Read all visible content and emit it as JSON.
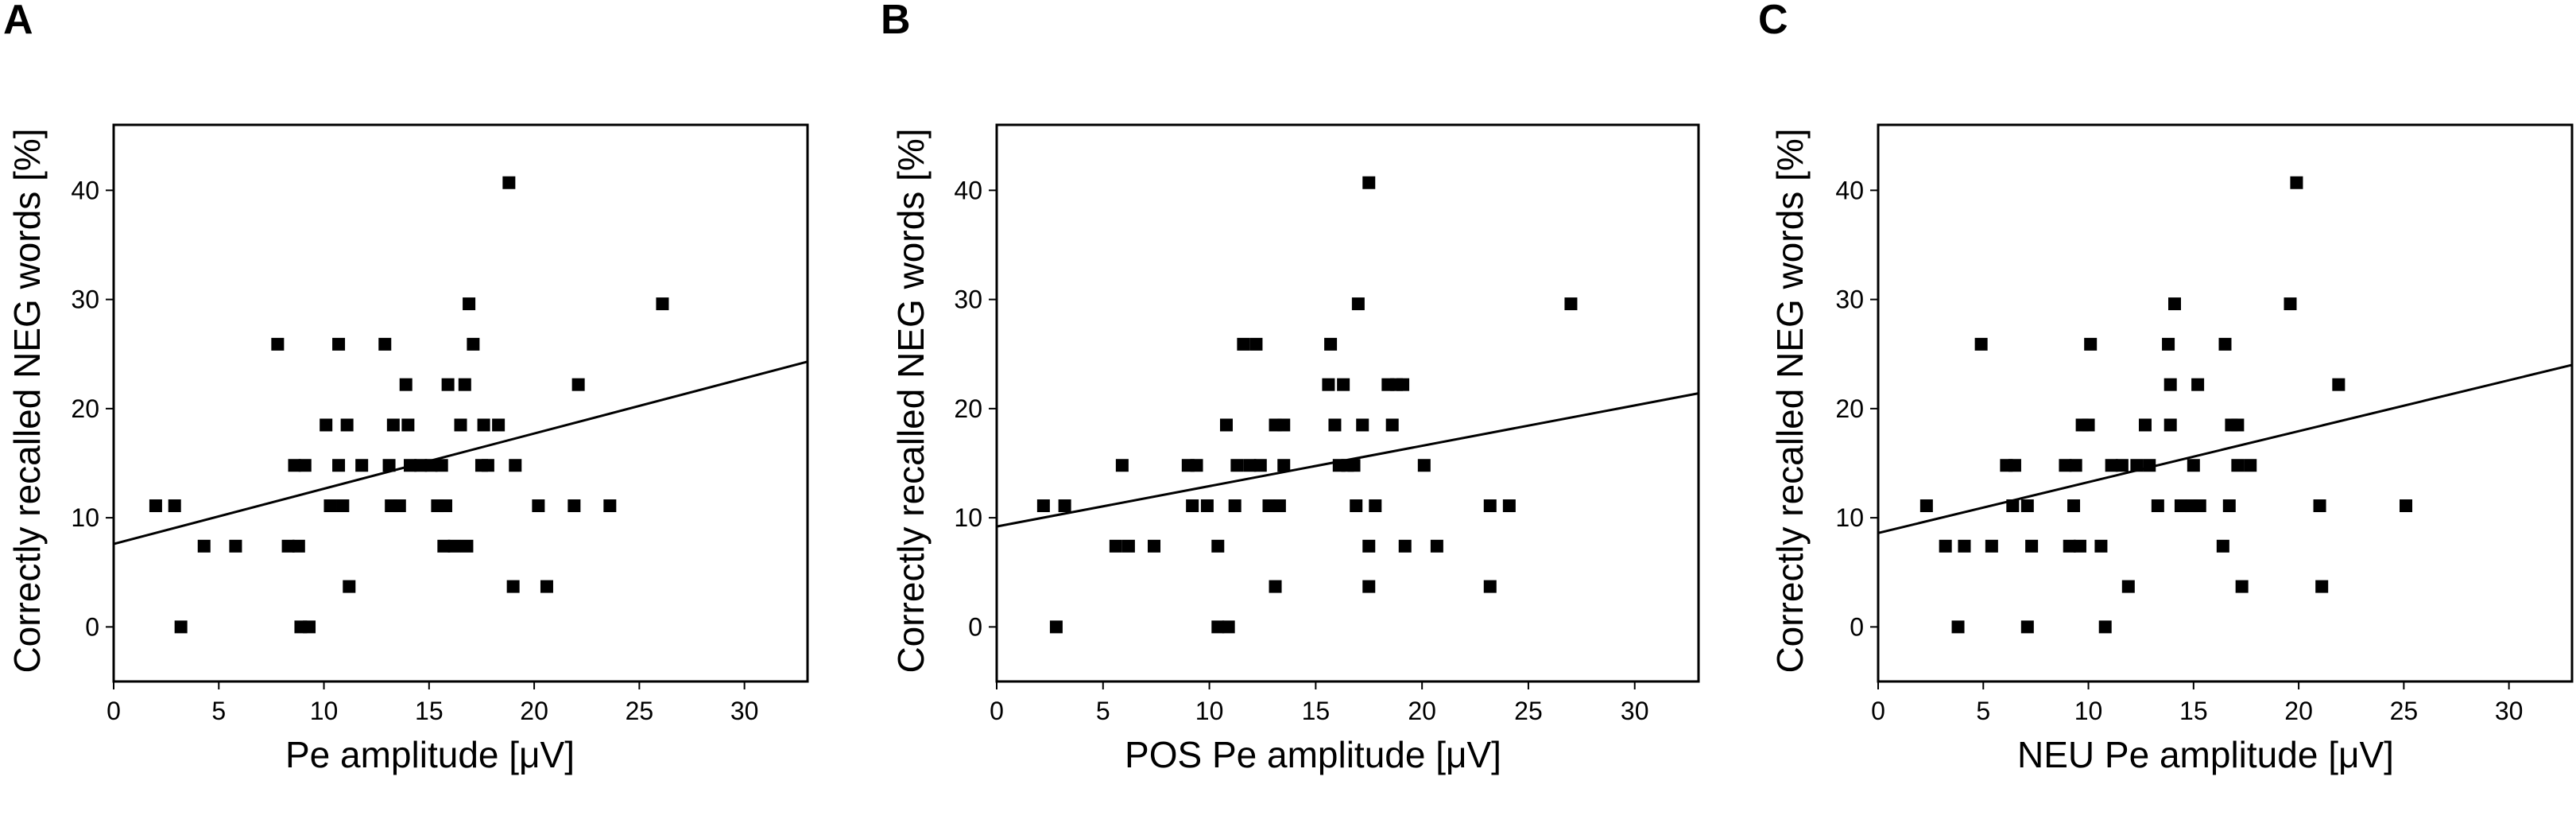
{
  "figure": {
    "colors": {
      "ink": "#000000",
      "background": "#ffffff"
    }
  },
  "chart_data": [
    {
      "panel": "A",
      "type": "scatter",
      "xlabel": "Pe amplitude [μV]",
      "ylabel": "Correctly recalled NEG words [%]",
      "xlim": [
        0,
        33
      ],
      "ylim": [
        -5,
        46
      ],
      "xticks": [
        0,
        5,
        10,
        15,
        20,
        25,
        30
      ],
      "yticks": [
        0,
        10,
        20,
        30,
        40
      ],
      "grid": false,
      "trendline": {
        "x": [
          0,
          33
        ],
        "y": [
          7.6,
          24.3
        ]
      },
      "points": [
        [
          2,
          11.1
        ],
        [
          2.9,
          11.1
        ],
        [
          3.2,
          0
        ],
        [
          4.3,
          7.4
        ],
        [
          5.8,
          7.4
        ],
        [
          7.8,
          25.9
        ],
        [
          8.3,
          7.4
        ],
        [
          8.8,
          7.4
        ],
        [
          8.6,
          14.8
        ],
        [
          9.1,
          14.8
        ],
        [
          8.9,
          0
        ],
        [
          9.3,
          0
        ],
        [
          10.1,
          18.5
        ],
        [
          10.3,
          11.1
        ],
        [
          10.7,
          14.8
        ],
        [
          10.7,
          25.9
        ],
        [
          10.9,
          11.1
        ],
        [
          11.1,
          18.5
        ],
        [
          11.2,
          3.7
        ],
        [
          11.8,
          14.8
        ],
        [
          12.9,
          25.9
        ],
        [
          13.1,
          14.8
        ],
        [
          13.3,
          18.5
        ],
        [
          13.2,
          11.1
        ],
        [
          13.6,
          11.1
        ],
        [
          13.9,
          22.2
        ],
        [
          14,
          18.5
        ],
        [
          14.1,
          14.8
        ],
        [
          14.6,
          14.8
        ],
        [
          15.1,
          14.8
        ],
        [
          15.6,
          14.8
        ],
        [
          15.4,
          11.1
        ],
        [
          15.8,
          11.1
        ],
        [
          15.7,
          7.4
        ],
        [
          16.2,
          7.4
        ],
        [
          15.9,
          22.2
        ],
        [
          16.5,
          18.5
        ],
        [
          16.7,
          22.2
        ],
        [
          16.8,
          7.4
        ],
        [
          16.9,
          29.6
        ],
        [
          17.1,
          25.9
        ],
        [
          17.5,
          14.8
        ],
        [
          17.8,
          14.8
        ],
        [
          17.6,
          18.5
        ],
        [
          18.3,
          18.5
        ],
        [
          18.8,
          40.7
        ],
        [
          19.1,
          14.8
        ],
        [
          19,
          3.7
        ],
        [
          20.2,
          11.1
        ],
        [
          20.6,
          3.7
        ],
        [
          21.9,
          11.1
        ],
        [
          22.1,
          22.2
        ],
        [
          23.6,
          11.1
        ],
        [
          26.1,
          29.6
        ]
      ]
    },
    {
      "panel": "B",
      "type": "scatter",
      "xlabel": "POS Pe amplitude [μV]",
      "ylabel": "Correctly recalled NEG words [%]",
      "xlim": [
        0,
        33
      ],
      "ylim": [
        -5,
        46
      ],
      "xticks": [
        0,
        5,
        10,
        15,
        20,
        25,
        30
      ],
      "yticks": [
        0,
        10,
        20,
        30,
        40
      ],
      "grid": false,
      "trendline": {
        "x": [
          0,
          33
        ],
        "y": [
          9.2,
          21.4
        ]
      },
      "points": [
        [
          2.2,
          11.1
        ],
        [
          2.8,
          0
        ],
        [
          3.2,
          11.1
        ],
        [
          5.6,
          7.4
        ],
        [
          6.2,
          7.4
        ],
        [
          5.9,
          14.8
        ],
        [
          7.4,
          7.4
        ],
        [
          9,
          14.8
        ],
        [
          9.4,
          14.8
        ],
        [
          9.2,
          11.1
        ],
        [
          9.9,
          11.1
        ],
        [
          10.4,
          7.4
        ],
        [
          10.4,
          0
        ],
        [
          10.9,
          0
        ],
        [
          10.8,
          18.5
        ],
        [
          11.2,
          11.1
        ],
        [
          11.3,
          14.8
        ],
        [
          11.6,
          25.9
        ],
        [
          11.9,
          14.8
        ],
        [
          12.2,
          25.9
        ],
        [
          12.4,
          14.8
        ],
        [
          12.8,
          11.1
        ],
        [
          13.1,
          18.5
        ],
        [
          13.3,
          11.1
        ],
        [
          13.5,
          18.5
        ],
        [
          13.1,
          3.7
        ],
        [
          13.5,
          14.8
        ],
        [
          15.7,
          25.9
        ],
        [
          15.6,
          22.2
        ],
        [
          15.9,
          18.5
        ],
        [
          16.1,
          14.8
        ],
        [
          16.3,
          22.2
        ],
        [
          16.5,
          14.8
        ],
        [
          16.8,
          14.8
        ],
        [
          16.9,
          11.1
        ],
        [
          17,
          29.6
        ],
        [
          17.2,
          18.5
        ],
        [
          17.5,
          40.7
        ],
        [
          17.5,
          7.4
        ],
        [
          17.5,
          3.7
        ],
        [
          17.8,
          11.1
        ],
        [
          18.4,
          22.2
        ],
        [
          18.6,
          18.5
        ],
        [
          18.8,
          22.2
        ],
        [
          19.1,
          22.2
        ],
        [
          19.2,
          7.4
        ],
        [
          20.1,
          14.8
        ],
        [
          20.7,
          7.4
        ],
        [
          23.2,
          11.1
        ],
        [
          23.2,
          3.7
        ],
        [
          24.1,
          11.1
        ],
        [
          27,
          29.6
        ]
      ]
    },
    {
      "panel": "C",
      "type": "scatter",
      "xlabel": "NEU Pe amplitude [μV]",
      "ylabel": "Correctly recalled NEG words [%]",
      "xlim": [
        0,
        33
      ],
      "ylim": [
        -5,
        46
      ],
      "xticks": [
        0,
        5,
        10,
        15,
        20,
        25,
        30
      ],
      "yticks": [
        0,
        10,
        20,
        30,
        40
      ],
      "grid": false,
      "trendline": {
        "x": [
          0,
          33
        ],
        "y": [
          8.6,
          24
        ]
      },
      "points": [
        [
          2.3,
          11.1
        ],
        [
          3.2,
          7.4
        ],
        [
          3.8,
          0
        ],
        [
          4.1,
          7.4
        ],
        [
          4.9,
          25.9
        ],
        [
          5.4,
          7.4
        ],
        [
          6.1,
          14.8
        ],
        [
          6.5,
          14.8
        ],
        [
          6.4,
          11.1
        ],
        [
          7.1,
          11.1
        ],
        [
          7.1,
          0
        ],
        [
          7.3,
          7.4
        ],
        [
          8.9,
          14.8
        ],
        [
          9.1,
          7.4
        ],
        [
          9.3,
          11.1
        ],
        [
          9.6,
          7.4
        ],
        [
          9.4,
          14.8
        ],
        [
          9.7,
          18.5
        ],
        [
          10,
          18.5
        ],
        [
          10.1,
          25.9
        ],
        [
          10.6,
          7.4
        ],
        [
          10.8,
          0
        ],
        [
          11.1,
          14.8
        ],
        [
          11.6,
          14.8
        ],
        [
          11.9,
          3.7
        ],
        [
          12.3,
          14.8
        ],
        [
          12.7,
          18.5
        ],
        [
          12.9,
          14.8
        ],
        [
          13.3,
          11.1
        ],
        [
          13.8,
          25.9
        ],
        [
          13.9,
          22.2
        ],
        [
          13.9,
          18.5
        ],
        [
          14.1,
          29.6
        ],
        [
          14.4,
          11.1
        ],
        [
          14.9,
          11.1
        ],
        [
          15,
          14.8
        ],
        [
          15.2,
          22.2
        ],
        [
          15.3,
          11.1
        ],
        [
          16.4,
          7.4
        ],
        [
          16.5,
          25.9
        ],
        [
          16.8,
          18.5
        ],
        [
          16.7,
          11.1
        ],
        [
          17.1,
          18.5
        ],
        [
          17.1,
          14.8
        ],
        [
          17.3,
          3.7
        ],
        [
          17.7,
          14.8
        ],
        [
          19.6,
          29.6
        ],
        [
          19.9,
          40.7
        ],
        [
          21,
          11.1
        ],
        [
          21.1,
          3.7
        ],
        [
          21.9,
          22.2
        ],
        [
          25.1,
          11.1
        ]
      ]
    }
  ]
}
